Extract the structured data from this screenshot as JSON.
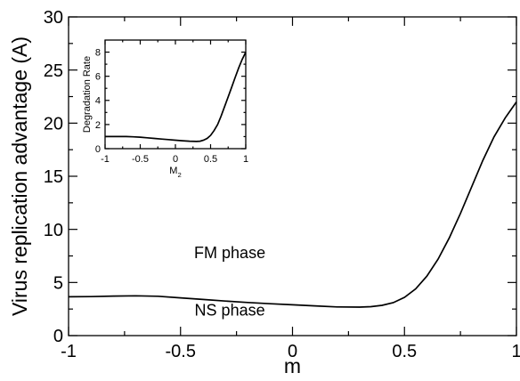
{
  "chart_data": [
    {
      "type": "line",
      "xlabel": "m",
      "ylabel": "Virus replication advantage (A)",
      "xlim": [
        -1,
        1
      ],
      "ylim": [
        0,
        30
      ],
      "x_ticks": [
        "-1",
        "-0.5",
        "0",
        "0.5",
        "1"
      ],
      "y_ticks": [
        "0",
        "5",
        "10",
        "15",
        "20",
        "25",
        "30"
      ],
      "grid": false,
      "annotations": [
        {
          "text": "FM phase",
          "x": -0.28,
          "y": 7.3
        },
        {
          "text": "NS phase",
          "x": -0.28,
          "y": 1.9
        }
      ],
      "series": [
        {
          "x": [
            -1.0,
            -0.9,
            -0.8,
            -0.7,
            -0.6,
            -0.5,
            -0.4,
            -0.3,
            -0.2,
            -0.1,
            0.0,
            0.1,
            0.2,
            0.3,
            0.35,
            0.4,
            0.45,
            0.5,
            0.55,
            0.6,
            0.65,
            0.7,
            0.75,
            0.8,
            0.85,
            0.9,
            0.95,
            1.0
          ],
          "y": [
            3.65,
            3.67,
            3.72,
            3.75,
            3.7,
            3.55,
            3.4,
            3.25,
            3.12,
            3.0,
            2.9,
            2.8,
            2.7,
            2.68,
            2.72,
            2.85,
            3.1,
            3.6,
            4.4,
            5.6,
            7.2,
            9.2,
            11.5,
            14.0,
            16.5,
            18.7,
            20.5,
            22.0
          ]
        }
      ]
    },
    {
      "type": "line",
      "xlabel": "M",
      "xlabel_sub": "2",
      "ylabel": "Degradation Rate",
      "xlim": [
        -1,
        1
      ],
      "ylim": [
        0,
        9
      ],
      "x_ticks": [
        "-1",
        "-0.5",
        "0",
        "0.5",
        "1"
      ],
      "y_ticks": [
        "0",
        "2",
        "4",
        "6",
        "8"
      ],
      "grid": false,
      "series": [
        {
          "x": [
            -1.0,
            -0.9,
            -0.8,
            -0.7,
            -0.6,
            -0.5,
            -0.4,
            -0.3,
            -0.2,
            -0.1,
            0.0,
            0.1,
            0.2,
            0.3,
            0.35,
            0.4,
            0.45,
            0.5,
            0.55,
            0.6,
            0.65,
            0.7,
            0.75,
            0.8,
            0.85,
            0.9,
            0.95,
            1.0
          ],
          "y": [
            1.0,
            1.0,
            1.0,
            1.0,
            0.98,
            0.95,
            0.9,
            0.85,
            0.8,
            0.75,
            0.7,
            0.66,
            0.62,
            0.6,
            0.62,
            0.7,
            0.85,
            1.1,
            1.5,
            2.0,
            2.7,
            3.5,
            4.3,
            5.1,
            5.9,
            6.7,
            7.4,
            8.0
          ]
        }
      ]
    }
  ]
}
